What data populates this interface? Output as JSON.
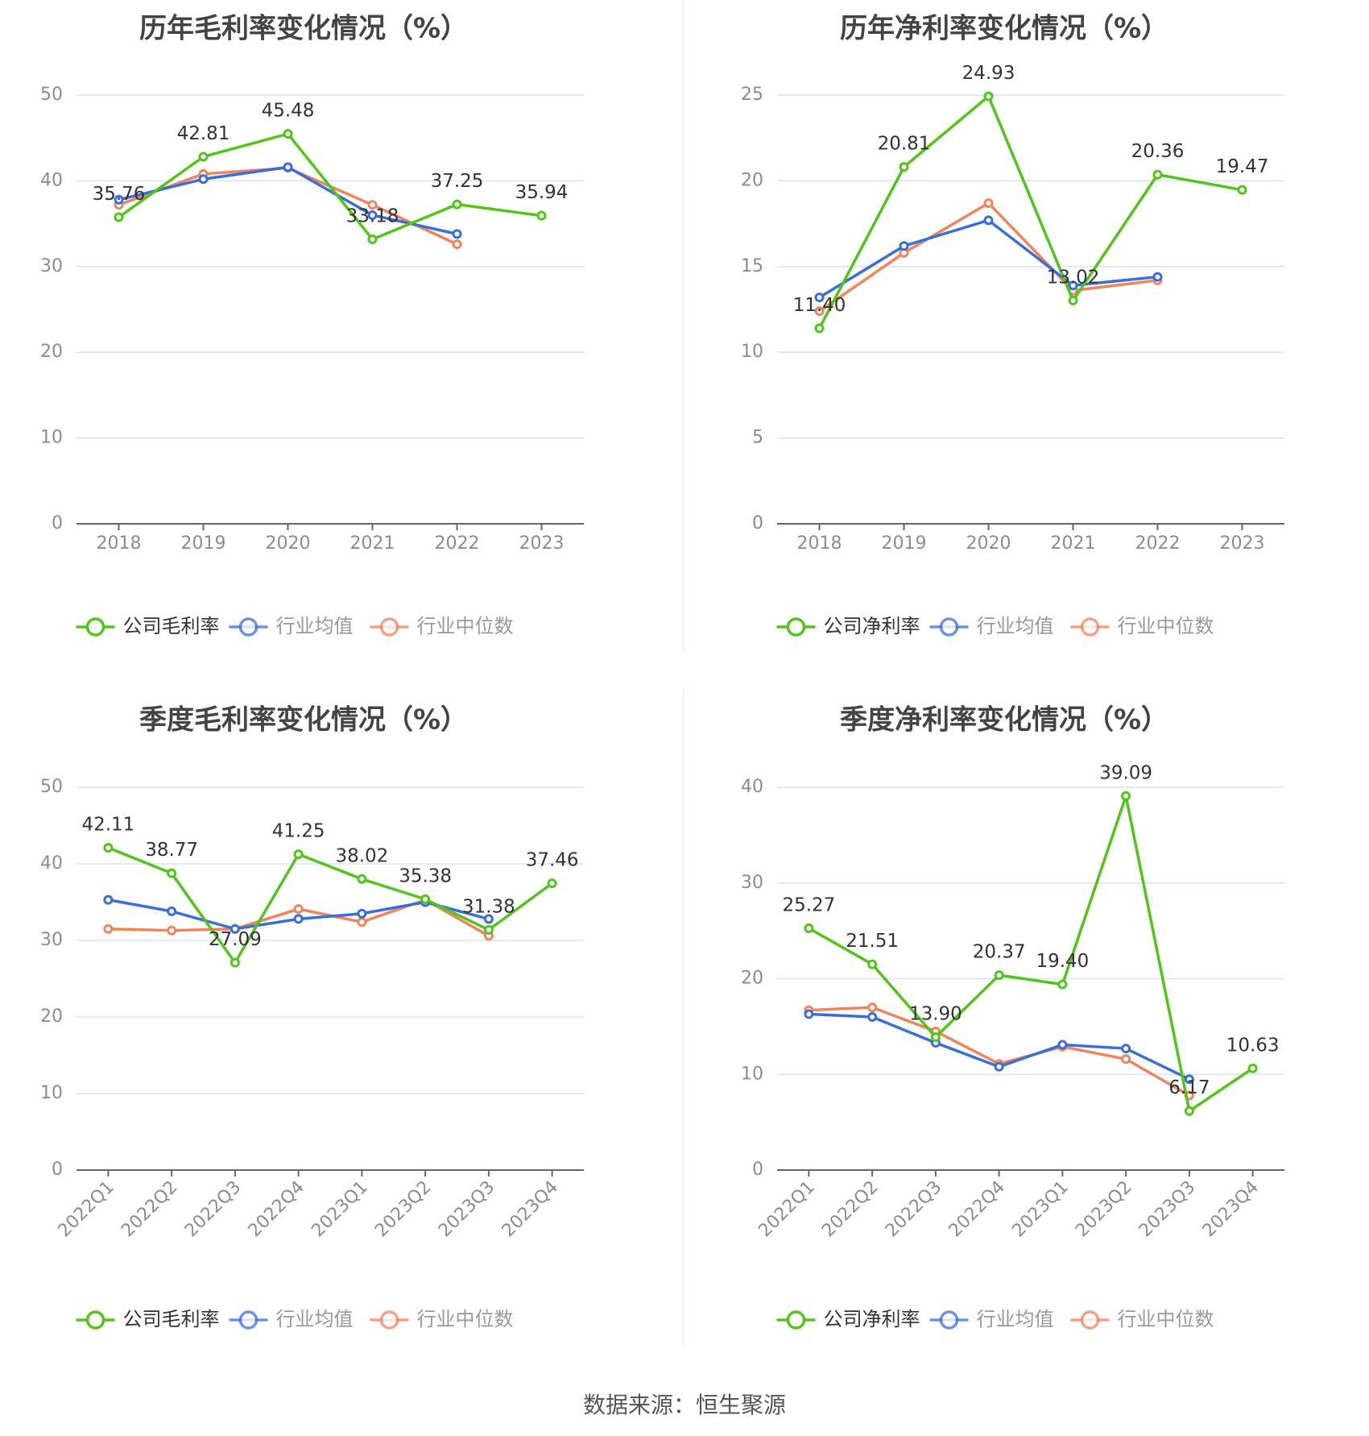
{
  "source": "数据来源：恒生聚源",
  "colors": {
    "company": "#52c41a",
    "mean": "#3a6fd8",
    "median": "#f0845c",
    "grid": "#dfe3f0",
    "axis": "#666666",
    "tick_text": "#8c8c8c",
    "label_text": "#333333"
  },
  "chart_data": [
    {
      "type": "line",
      "title": "历年毛利率变化情况（%）",
      "categories": [
        "2018",
        "2019",
        "2020",
        "2021",
        "2022",
        "2023"
      ],
      "ylim": [
        0,
        50
      ],
      "yticks": [
        "0",
        "10",
        "20",
        "30",
        "40",
        "50"
      ],
      "x_label_rotate": false,
      "series": [
        {
          "name": "公司毛利率",
          "key": "company",
          "values": [
            35.76,
            42.81,
            45.48,
            33.18,
            37.25,
            35.94
          ],
          "labels": [
            "35.76",
            "42.81",
            "45.48",
            "33.18",
            "37.25",
            "35.94"
          ]
        },
        {
          "name": "行业均值",
          "key": "mean",
          "values": [
            37.8,
            40.2,
            41.6,
            36.0,
            33.8,
            null
          ]
        },
        {
          "name": "行业中位数",
          "key": "median",
          "values": [
            37.2,
            40.8,
            41.5,
            37.2,
            32.6,
            null
          ]
        }
      ]
    },
    {
      "type": "line",
      "title": "历年净利率变化情况（%）",
      "categories": [
        "2018",
        "2019",
        "2020",
        "2021",
        "2022",
        "2023"
      ],
      "ylim": [
        0,
        25
      ],
      "yticks": [
        "0",
        "5",
        "10",
        "15",
        "20",
        "25"
      ],
      "x_label_rotate": false,
      "series": [
        {
          "name": "公司净利率",
          "key": "company",
          "values": [
            11.4,
            20.81,
            24.93,
            13.02,
            20.36,
            19.47
          ],
          "labels": [
            "11.40",
            "20.81",
            "24.93",
            "13.02",
            "20.36",
            "19.47"
          ]
        },
        {
          "name": "行业均值",
          "key": "mean",
          "values": [
            13.2,
            16.2,
            17.7,
            13.9,
            14.4,
            null
          ]
        },
        {
          "name": "行业中位数",
          "key": "median",
          "values": [
            12.4,
            15.8,
            18.7,
            13.6,
            14.2,
            null
          ]
        }
      ]
    },
    {
      "type": "line",
      "title": "季度毛利率变化情况（%）",
      "categories": [
        "2022Q1",
        "2022Q2",
        "2022Q3",
        "2022Q4",
        "2023Q1",
        "2023Q2",
        "2023Q3",
        "2023Q4"
      ],
      "ylim": [
        0,
        50
      ],
      "yticks": [
        "0",
        "10",
        "20",
        "30",
        "40",
        "50"
      ],
      "x_label_rotate": true,
      "series": [
        {
          "name": "公司毛利率",
          "key": "company",
          "values": [
            42.11,
            38.77,
            27.09,
            41.25,
            38.02,
            35.38,
            31.38,
            37.46
          ],
          "labels": [
            "42.11",
            "38.77",
            "27.09",
            "41.25",
            "38.02",
            "35.38",
            "31.38",
            "37.46"
          ]
        },
        {
          "name": "行业均值",
          "key": "mean",
          "values": [
            35.3,
            33.8,
            31.5,
            32.8,
            33.5,
            35.0,
            32.8,
            null
          ]
        },
        {
          "name": "行业中位数",
          "key": "median",
          "values": [
            31.5,
            31.3,
            31.5,
            34.1,
            32.4,
            35.3,
            30.6,
            null
          ]
        }
      ]
    },
    {
      "type": "line",
      "title": "季度净利率变化情况（%）",
      "categories": [
        "2022Q1",
        "2022Q2",
        "2022Q3",
        "2022Q4",
        "2023Q1",
        "2023Q2",
        "2023Q3",
        "2023Q4"
      ],
      "ylim": [
        0,
        40
      ],
      "yticks": [
        "0",
        "10",
        "20",
        "30",
        "40"
      ],
      "x_label_rotate": true,
      "series": [
        {
          "name": "公司净利率",
          "key": "company",
          "values": [
            25.27,
            21.51,
            13.9,
            20.37,
            19.4,
            39.09,
            6.17,
            10.63
          ],
          "labels": [
            "25.27",
            "21.51",
            "13.90",
            "20.37",
            "19.40",
            "39.09",
            "6.17",
            "10.63"
          ]
        },
        {
          "name": "行业均值",
          "key": "mean",
          "values": [
            16.3,
            16.0,
            13.3,
            10.8,
            13.1,
            12.7,
            9.5,
            null
          ]
        },
        {
          "name": "行业中位数",
          "key": "median",
          "values": [
            16.7,
            17.0,
            14.5,
            11.1,
            12.9,
            11.6,
            7.8,
            null
          ]
        }
      ]
    }
  ]
}
